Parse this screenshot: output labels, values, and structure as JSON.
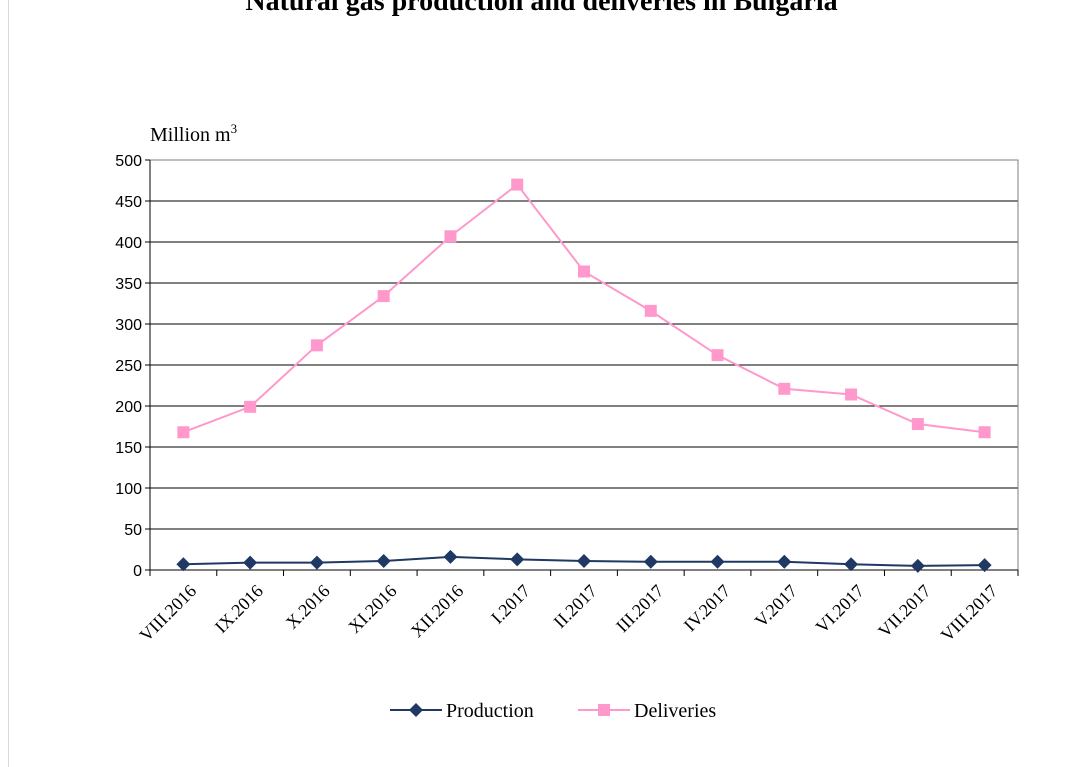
{
  "page": {
    "title": "Natural gas production and deliveries in Bulgaria"
  },
  "chart_data": {
    "type": "line",
    "title": "",
    "unit_label": "Million m",
    "unit_superscript": "3",
    "xlabel": "",
    "ylabel": "Million m3",
    "ylim": [
      0,
      500
    ],
    "yticks": [
      0,
      50,
      100,
      150,
      200,
      250,
      300,
      350,
      400,
      450,
      500
    ],
    "grid": true,
    "legend_position": "bottom",
    "categories": [
      "VIII.2016",
      "IX.2016",
      "X.2016",
      "XI.2016",
      "XII.2016",
      "I.2017",
      "II.2017",
      "III.2017",
      "IV.2017",
      "V.2017",
      "VI.2017",
      "VII.2017",
      "VIII.2017"
    ],
    "series": [
      {
        "name": "Production",
        "color": "#1f3864",
        "marker": "diamond",
        "values": [
          7,
          9,
          9,
          11,
          16,
          13,
          11,
          10,
          10,
          10,
          7,
          5,
          6
        ]
      },
      {
        "name": "Deliveries",
        "color": "#ff99cc",
        "marker": "square",
        "values": [
          168,
          199,
          274,
          334,
          407,
          470,
          364,
          316,
          262,
          221,
          214,
          178,
          168
        ]
      }
    ]
  }
}
